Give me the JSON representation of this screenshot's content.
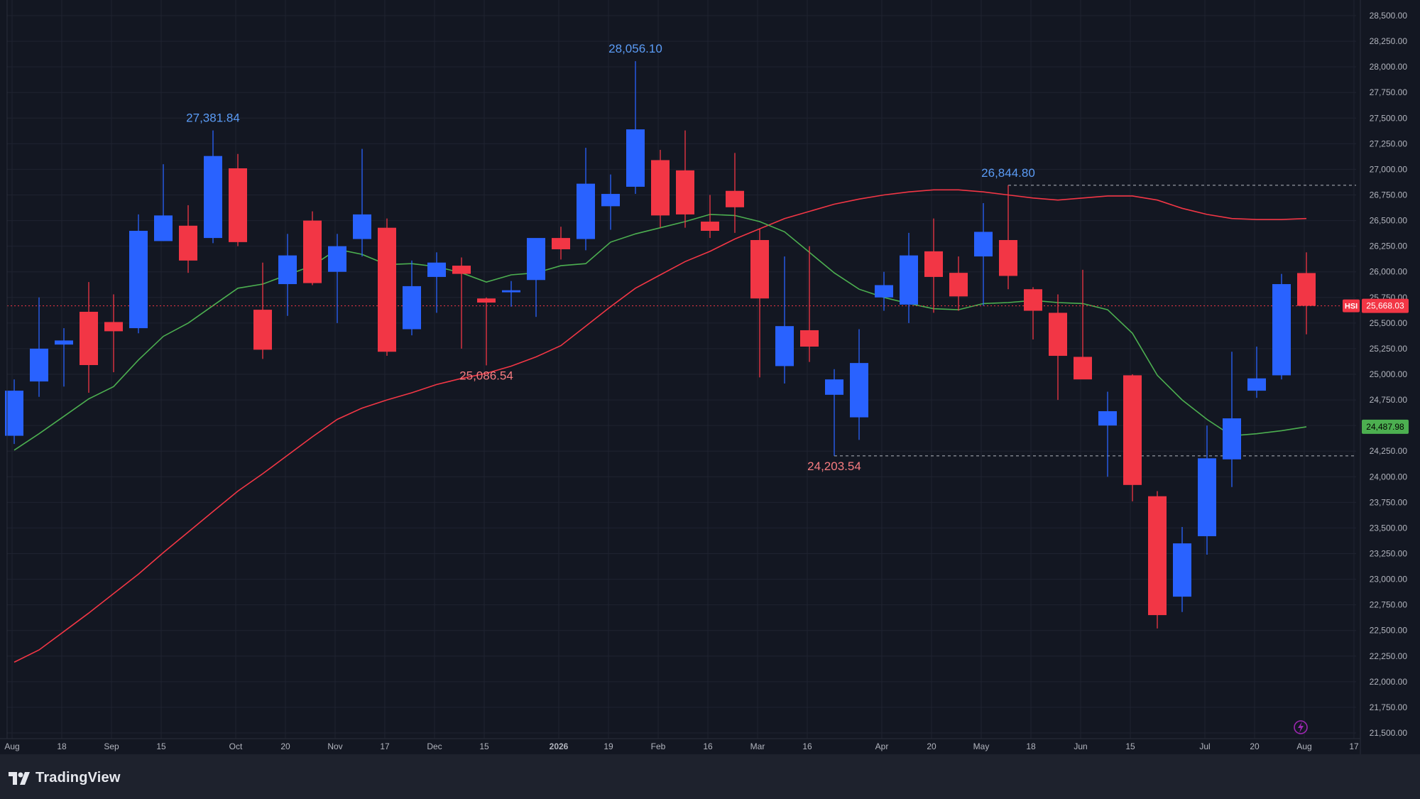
{
  "brand": {
    "name": "TradingView",
    "logo_icon": "tradingview-logo-icon"
  },
  "colors": {
    "background": "#131722",
    "up": "#2962ff",
    "down": "#f23645",
    "ma_fast": "#4caf50",
    "ma_slow": "#f23645",
    "axis_text": "#b2b5be",
    "high_label": "#5b9cf6",
    "low_label": "#f77c80"
  },
  "chart_data": {
    "type": "candlestick",
    "symbol": "HSI",
    "interval": "weekly",
    "ylim": [
      21400,
      28600
    ],
    "y_ticks": [
      {
        "value": 21500,
        "label": "21,500.00"
      },
      {
        "value": 21750,
        "label": "21,750.00"
      },
      {
        "value": 22000,
        "label": "22,000.00"
      },
      {
        "value": 22250,
        "label": "22,250.00"
      },
      {
        "value": 22500,
        "label": "22,500.00"
      },
      {
        "value": 22750,
        "label": "22,750.00"
      },
      {
        "value": 23000,
        "label": "23,000.00"
      },
      {
        "value": 23250,
        "label": "23,250.00"
      },
      {
        "value": 23500,
        "label": "23,500.00"
      },
      {
        "value": 23750,
        "label": "23,750.00"
      },
      {
        "value": 24000,
        "label": "24,000.00"
      },
      {
        "value": 24250,
        "label": "24,250.00"
      },
      {
        "value": 24500,
        "label": "24,500.00"
      },
      {
        "value": 24750,
        "label": "24,750.00"
      },
      {
        "value": 25000,
        "label": "25,000.00"
      },
      {
        "value": 25250,
        "label": "25,250.00"
      },
      {
        "value": 25500,
        "label": "25,500.00"
      },
      {
        "value": 25750,
        "label": "25,750.00"
      },
      {
        "value": 26000,
        "label": "26,000.00"
      },
      {
        "value": 26250,
        "label": "26,250.00"
      },
      {
        "value": 26500,
        "label": "26,500.00"
      },
      {
        "value": 26750,
        "label": "26,750.00"
      },
      {
        "value": 27000,
        "label": "27,000.00"
      },
      {
        "value": 27250,
        "label": "27,250.00"
      },
      {
        "value": 27500,
        "label": "27,500.00"
      },
      {
        "value": 27750,
        "label": "27,750.00"
      },
      {
        "value": 28000,
        "label": "28,000.00"
      },
      {
        "value": 28250,
        "label": "28,250.00"
      },
      {
        "value": 28500,
        "label": "28,500.00"
      }
    ],
    "x_ticks": [
      {
        "index": 0,
        "label": "Aug"
      },
      {
        "index": 2,
        "label": "18"
      },
      {
        "index": 4,
        "label": "Sep"
      },
      {
        "index": 6,
        "label": "15"
      },
      {
        "index": 9,
        "label": "Oct"
      },
      {
        "index": 11,
        "label": "20"
      },
      {
        "index": 13,
        "label": "Nov"
      },
      {
        "index": 15,
        "label": "17"
      },
      {
        "index": 17,
        "label": "Dec"
      },
      {
        "index": 19,
        "label": "15"
      },
      {
        "index": 22,
        "label": "2026"
      },
      {
        "index": 24,
        "label": "19"
      },
      {
        "index": 26,
        "label": "Feb"
      },
      {
        "index": 28,
        "label": "16"
      },
      {
        "index": 30,
        "label": "Mar"
      },
      {
        "index": 32,
        "label": "16"
      },
      {
        "index": 35,
        "label": "Apr"
      },
      {
        "index": 37,
        "label": "20"
      },
      {
        "index": 39,
        "label": "May"
      },
      {
        "index": 41,
        "label": "18"
      },
      {
        "index": 43,
        "label": "Jun"
      },
      {
        "index": 45,
        "label": "15"
      },
      {
        "index": 48,
        "label": "Jul"
      },
      {
        "index": 50,
        "label": "20"
      },
      {
        "index": 52,
        "label": "Aug"
      },
      {
        "index": 54,
        "label": "17"
      }
    ],
    "candles": [
      {
        "o": 24400,
        "h": 24950,
        "l": 24320,
        "c": 24840
      },
      {
        "o": 24930,
        "h": 25750,
        "l": 24780,
        "c": 25250
      },
      {
        "o": 25290,
        "h": 25450,
        "l": 24880,
        "c": 25330
      },
      {
        "o": 25610,
        "h": 25900,
        "l": 24820,
        "c": 25090
      },
      {
        "o": 25510,
        "h": 25780,
        "l": 25020,
        "c": 25420
      },
      {
        "o": 25450,
        "h": 26560,
        "l": 25400,
        "c": 26400
      },
      {
        "o": 26300,
        "h": 27050,
        "l": 26300,
        "c": 26550
      },
      {
        "o": 26450,
        "h": 26650,
        "l": 25990,
        "c": 26110
      },
      {
        "o": 26330,
        "h": 27380,
        "l": 26280,
        "c": 27130
      },
      {
        "o": 27010,
        "h": 27150,
        "l": 26250,
        "c": 26290
      },
      {
        "o": 25630,
        "h": 26090,
        "l": 25150,
        "c": 25240
      },
      {
        "o": 25880,
        "h": 26370,
        "l": 25570,
        "c": 26160
      },
      {
        "o": 26500,
        "h": 26590,
        "l": 25870,
        "c": 25890
      },
      {
        "o": 26000,
        "h": 26370,
        "l": 25500,
        "c": 26250
      },
      {
        "o": 26320,
        "h": 27200,
        "l": 26150,
        "c": 26560
      },
      {
        "o": 26430,
        "h": 26520,
        "l": 25180,
        "c": 25220
      },
      {
        "o": 25440,
        "h": 26110,
        "l": 25380,
        "c": 25860
      },
      {
        "o": 25950,
        "h": 26190,
        "l": 25600,
        "c": 26090
      },
      {
        "o": 26060,
        "h": 26140,
        "l": 25250,
        "c": 25980
      },
      {
        "o": 25740,
        "h": 25750,
        "l": 25087,
        "c": 25700
      },
      {
        "o": 25800,
        "h": 25910,
        "l": 25660,
        "c": 25820
      },
      {
        "o": 25920,
        "h": 26320,
        "l": 25560,
        "c": 26330
      },
      {
        "o": 26330,
        "h": 26440,
        "l": 26120,
        "c": 26220
      },
      {
        "o": 26320,
        "h": 27210,
        "l": 26210,
        "c": 26860
      },
      {
        "o": 26640,
        "h": 26950,
        "l": 26410,
        "c": 26760
      },
      {
        "o": 26830,
        "h": 28056,
        "l": 26760,
        "c": 27390
      },
      {
        "o": 27090,
        "h": 27190,
        "l": 26430,
        "c": 26550
      },
      {
        "o": 26990,
        "h": 27380,
        "l": 26430,
        "c": 26560
      },
      {
        "o": 26490,
        "h": 26750,
        "l": 26330,
        "c": 26400
      },
      {
        "o": 26790,
        "h": 27160,
        "l": 26380,
        "c": 26630
      },
      {
        "o": 26310,
        "h": 26420,
        "l": 24970,
        "c": 25740
      },
      {
        "o": 25080,
        "h": 26150,
        "l": 24910,
        "c": 25470
      },
      {
        "o": 25430,
        "h": 26250,
        "l": 25120,
        "c": 25270
      },
      {
        "o": 24800,
        "h": 25050,
        "l": 24204,
        "c": 24950
      },
      {
        "o": 24580,
        "h": 25440,
        "l": 24360,
        "c": 25110
      },
      {
        "o": 25750,
        "h": 26000,
        "l": 25620,
        "c": 25870
      },
      {
        "o": 25680,
        "h": 26380,
        "l": 25500,
        "c": 26160
      },
      {
        "o": 26200,
        "h": 26520,
        "l": 25600,
        "c": 25950
      },
      {
        "o": 25990,
        "h": 26150,
        "l": 25620,
        "c": 25760
      },
      {
        "o": 26150,
        "h": 26670,
        "l": 25670,
        "c": 26390
      },
      {
        "o": 26310,
        "h": 26845,
        "l": 25830,
        "c": 25960
      },
      {
        "o": 25830,
        "h": 25850,
        "l": 25340,
        "c": 25620
      },
      {
        "o": 25600,
        "h": 25780,
        "l": 24750,
        "c": 25180
      },
      {
        "o": 25170,
        "h": 26020,
        "l": 24960,
        "c": 24950
      },
      {
        "o": 24500,
        "h": 24830,
        "l": 24000,
        "c": 24640
      },
      {
        "o": 24990,
        "h": 25000,
        "l": 23760,
        "c": 23920
      },
      {
        "o": 23810,
        "h": 23860,
        "l": 22520,
        "c": 22650
      },
      {
        "o": 22830,
        "h": 23510,
        "l": 22680,
        "c": 23350
      },
      {
        "o": 23420,
        "h": 24500,
        "l": 23240,
        "c": 24180
      },
      {
        "o": 24170,
        "h": 25220,
        "l": 23900,
        "c": 24570
      },
      {
        "o": 24840,
        "h": 25270,
        "l": 24770,
        "c": 24960
      },
      {
        "o": 24990,
        "h": 25980,
        "l": 24950,
        "c": 25880
      },
      {
        "o": 25988,
        "h": 26190,
        "l": 25390,
        "c": 25668
      }
    ],
    "ma_fast": [
      24260,
      24420,
      24590,
      24760,
      24880,
      25140,
      25370,
      25500,
      25670,
      25840,
      25880,
      25970,
      26060,
      26220,
      26170,
      26070,
      26080,
      26050,
      25990,
      25900,
      25970,
      25990,
      26060,
      26080,
      26290,
      26370,
      26430,
      26490,
      26560,
      26550,
      26490,
      26390,
      26190,
      25990,
      25830,
      25750,
      25690,
      25640,
      25630,
      25690,
      25700,
      25720,
      25700,
      25690,
      25630,
      25400,
      24990,
      24750,
      24560,
      24400,
      24420,
      24450,
      24488
    ],
    "ma_slow": [
      22190,
      22310,
      22490,
      22670,
      22860,
      23050,
      23260,
      23460,
      23660,
      23860,
      24030,
      24210,
      24390,
      24560,
      24670,
      24750,
      24820,
      24900,
      24960,
      25010,
      25080,
      25170,
      25280,
      25470,
      25660,
      25840,
      25970,
      26100,
      26200,
      26320,
      26420,
      26520,
      26590,
      26660,
      26710,
      26750,
      26780,
      26800,
      26800,
      26780,
      26750,
      26720,
      26700,
      26720,
      26740,
      26740,
      26700,
      26620,
      26560,
      26520,
      26510,
      26510,
      26520
    ],
    "current_price": {
      "value": 25668.03,
      "label": "25,668.03",
      "symbol_label": "HSI"
    },
    "ma_fast_label": {
      "value": 24487.98,
      "label": "24,487.98"
    },
    "annotations": [
      {
        "type": "high",
        "index": 8,
        "value": 27381.84,
        "label": "27,381.84"
      },
      {
        "type": "high",
        "index": 25,
        "value": 28056.1,
        "label": "28,056.10"
      },
      {
        "type": "low",
        "index": 19,
        "value": 25086.54,
        "label": "25,086.54"
      },
      {
        "type": "low",
        "index": 33,
        "value": 24203.54,
        "label": "24,203.54"
      },
      {
        "type": "high",
        "index": 40,
        "value": 26844.8,
        "label": "26,844.80"
      }
    ]
  }
}
